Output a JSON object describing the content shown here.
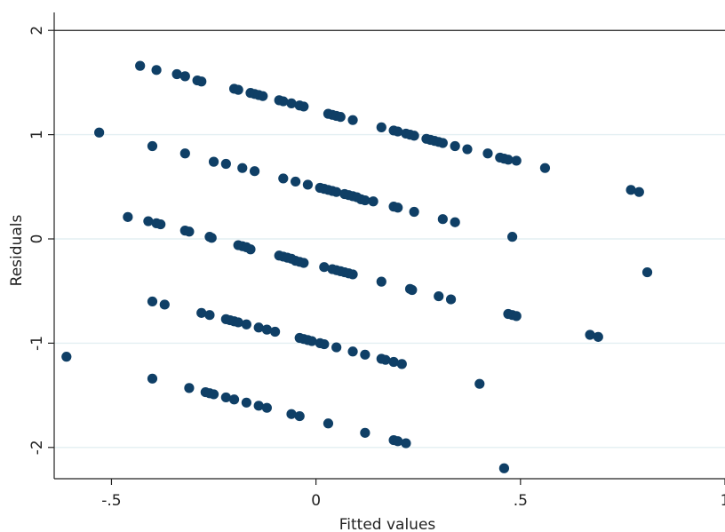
{
  "chart_data": {
    "type": "scatter",
    "xlabel": "Fitted values",
    "ylabel": "Residuals",
    "xlim": [
      -0.64,
      1.0
    ],
    "ylim": [
      -2.3,
      2.07
    ],
    "xticks": [
      {
        "value": -0.5,
        "label": "-.5"
      },
      {
        "value": 0,
        "label": "0"
      },
      {
        "value": 0.5,
        "label": ".5"
      },
      {
        "value": 1,
        "label": "1"
      }
    ],
    "yticks": [
      {
        "value": -2,
        "label": "-2"
      },
      {
        "value": -1,
        "label": "-1"
      },
      {
        "value": 0,
        "label": "0"
      },
      {
        "value": 1,
        "label": "1"
      },
      {
        "value": 2,
        "label": "2"
      }
    ],
    "grid": "horizontal",
    "marker_color": "#0f3f66",
    "gridline_color": "#e3eff2",
    "points": [
      {
        "x": -0.43,
        "y": 1.66
      },
      {
        "x": -0.39,
        "y": 1.62
      },
      {
        "x": -0.34,
        "y": 1.58
      },
      {
        "x": -0.32,
        "y": 1.56
      },
      {
        "x": -0.29,
        "y": 1.52
      },
      {
        "x": -0.28,
        "y": 1.51
      },
      {
        "x": -0.2,
        "y": 1.44
      },
      {
        "x": -0.19,
        "y": 1.43
      },
      {
        "x": -0.16,
        "y": 1.4
      },
      {
        "x": -0.15,
        "y": 1.39
      },
      {
        "x": -0.14,
        "y": 1.38
      },
      {
        "x": -0.13,
        "y": 1.37
      },
      {
        "x": -0.09,
        "y": 1.33
      },
      {
        "x": -0.08,
        "y": 1.32
      },
      {
        "x": -0.06,
        "y": 1.3
      },
      {
        "x": -0.04,
        "y": 1.28
      },
      {
        "x": -0.03,
        "y": 1.27
      },
      {
        "x": 0.03,
        "y": 1.2
      },
      {
        "x": 0.04,
        "y": 1.19
      },
      {
        "x": 0.05,
        "y": 1.18
      },
      {
        "x": 0.06,
        "y": 1.17
      },
      {
        "x": 0.09,
        "y": 1.14
      },
      {
        "x": 0.16,
        "y": 1.07
      },
      {
        "x": 0.19,
        "y": 1.04
      },
      {
        "x": 0.2,
        "y": 1.03
      },
      {
        "x": 0.22,
        "y": 1.01
      },
      {
        "x": 0.23,
        "y": 1.0
      },
      {
        "x": 0.24,
        "y": 0.99
      },
      {
        "x": 0.27,
        "y": 0.96
      },
      {
        "x": 0.28,
        "y": 0.95
      },
      {
        "x": 0.29,
        "y": 0.94
      },
      {
        "x": 0.3,
        "y": 0.93
      },
      {
        "x": 0.31,
        "y": 0.92
      },
      {
        "x": 0.34,
        "y": 0.89
      },
      {
        "x": 0.37,
        "y": 0.86
      },
      {
        "x": 0.42,
        "y": 0.82
      },
      {
        "x": 0.45,
        "y": 0.78
      },
      {
        "x": 0.46,
        "y": 0.77
      },
      {
        "x": 0.47,
        "y": 0.76
      },
      {
        "x": 0.49,
        "y": 0.75
      },
      {
        "x": 0.56,
        "y": 0.68
      },
      {
        "x": -0.53,
        "y": 1.02
      },
      {
        "x": -0.4,
        "y": 0.89
      },
      {
        "x": -0.32,
        "y": 0.82
      },
      {
        "x": -0.25,
        "y": 0.74
      },
      {
        "x": -0.22,
        "y": 0.72
      },
      {
        "x": -0.18,
        "y": 0.68
      },
      {
        "x": -0.15,
        "y": 0.65
      },
      {
        "x": -0.08,
        "y": 0.58
      },
      {
        "x": -0.05,
        "y": 0.55
      },
      {
        "x": -0.02,
        "y": 0.52
      },
      {
        "x": 0.01,
        "y": 0.49
      },
      {
        "x": 0.02,
        "y": 0.48
      },
      {
        "x": 0.03,
        "y": 0.47
      },
      {
        "x": 0.04,
        "y": 0.46
      },
      {
        "x": 0.05,
        "y": 0.45
      },
      {
        "x": 0.07,
        "y": 0.43
      },
      {
        "x": 0.08,
        "y": 0.42
      },
      {
        "x": 0.09,
        "y": 0.41
      },
      {
        "x": 0.1,
        "y": 0.4
      },
      {
        "x": 0.11,
        "y": 0.38
      },
      {
        "x": 0.12,
        "y": 0.37
      },
      {
        "x": 0.14,
        "y": 0.36
      },
      {
        "x": 0.19,
        "y": 0.31
      },
      {
        "x": 0.2,
        "y": 0.3
      },
      {
        "x": 0.24,
        "y": 0.26
      },
      {
        "x": 0.31,
        "y": 0.19
      },
      {
        "x": 0.34,
        "y": 0.16
      },
      {
        "x": 0.77,
        "y": 0.47
      },
      {
        "x": 0.79,
        "y": 0.45
      },
      {
        "x": -0.46,
        "y": 0.21
      },
      {
        "x": -0.41,
        "y": 0.17
      },
      {
        "x": -0.39,
        "y": 0.15
      },
      {
        "x": -0.38,
        "y": 0.14
      },
      {
        "x": -0.32,
        "y": 0.08
      },
      {
        "x": -0.31,
        "y": 0.07
      },
      {
        "x": -0.26,
        "y": 0.02
      },
      {
        "x": -0.255,
        "y": 0.01
      },
      {
        "x": -0.19,
        "y": -0.06
      },
      {
        "x": -0.18,
        "y": -0.07
      },
      {
        "x": -0.17,
        "y": -0.08
      },
      {
        "x": -0.16,
        "y": -0.1
      },
      {
        "x": -0.09,
        "y": -0.16
      },
      {
        "x": -0.08,
        "y": -0.17
      },
      {
        "x": -0.07,
        "y": -0.18
      },
      {
        "x": -0.06,
        "y": -0.19
      },
      {
        "x": -0.05,
        "y": -0.21
      },
      {
        "x": -0.04,
        "y": -0.22
      },
      {
        "x": -0.03,
        "y": -0.23
      },
      {
        "x": 0.02,
        "y": -0.27
      },
      {
        "x": 0.04,
        "y": -0.29
      },
      {
        "x": 0.05,
        "y": -0.3
      },
      {
        "x": 0.06,
        "y": -0.31
      },
      {
        "x": 0.07,
        "y": -0.32
      },
      {
        "x": 0.08,
        "y": -0.33
      },
      {
        "x": 0.09,
        "y": -0.34
      },
      {
        "x": 0.16,
        "y": -0.41
      },
      {
        "x": 0.23,
        "y": -0.48
      },
      {
        "x": 0.235,
        "y": -0.49
      },
      {
        "x": 0.3,
        "y": -0.55
      },
      {
        "x": 0.33,
        "y": -0.58
      },
      {
        "x": 0.48,
        "y": 0.02
      },
      {
        "x": 0.81,
        "y": -0.32
      },
      {
        "x": -0.4,
        "y": -0.6
      },
      {
        "x": -0.37,
        "y": -0.63
      },
      {
        "x": -0.28,
        "y": -0.71
      },
      {
        "x": -0.26,
        "y": -0.73
      },
      {
        "x": -0.22,
        "y": -0.77
      },
      {
        "x": -0.21,
        "y": -0.78
      },
      {
        "x": -0.2,
        "y": -0.79
      },
      {
        "x": -0.19,
        "y": -0.8
      },
      {
        "x": -0.17,
        "y": -0.82
      },
      {
        "x": -0.14,
        "y": -0.85
      },
      {
        "x": -0.12,
        "y": -0.87
      },
      {
        "x": -0.1,
        "y": -0.89
      },
      {
        "x": -0.04,
        "y": -0.95
      },
      {
        "x": -0.03,
        "y": -0.96
      },
      {
        "x": -0.02,
        "y": -0.97
      },
      {
        "x": -0.01,
        "y": -0.98
      },
      {
        "x": 0.01,
        "y": -1.0
      },
      {
        "x": 0.02,
        "y": -1.01
      },
      {
        "x": 0.05,
        "y": -1.04
      },
      {
        "x": 0.09,
        "y": -1.08
      },
      {
        "x": 0.12,
        "y": -1.11
      },
      {
        "x": 0.16,
        "y": -1.15
      },
      {
        "x": 0.17,
        "y": -1.16
      },
      {
        "x": 0.19,
        "y": -1.18
      },
      {
        "x": 0.21,
        "y": -1.2
      },
      {
        "x": 0.47,
        "y": -0.72
      },
      {
        "x": 0.48,
        "y": -0.73
      },
      {
        "x": 0.49,
        "y": -0.74
      },
      {
        "x": 0.67,
        "y": -0.92
      },
      {
        "x": 0.69,
        "y": -0.94
      },
      {
        "x": -0.61,
        "y": -1.13
      },
      {
        "x": -0.4,
        "y": -1.34
      },
      {
        "x": -0.31,
        "y": -1.43
      },
      {
        "x": -0.27,
        "y": -1.47
      },
      {
        "x": -0.26,
        "y": -1.48
      },
      {
        "x": -0.25,
        "y": -1.49
      },
      {
        "x": -0.22,
        "y": -1.52
      },
      {
        "x": -0.2,
        "y": -1.54
      },
      {
        "x": -0.17,
        "y": -1.57
      },
      {
        "x": -0.14,
        "y": -1.6
      },
      {
        "x": -0.12,
        "y": -1.62
      },
      {
        "x": -0.06,
        "y": -1.68
      },
      {
        "x": -0.04,
        "y": -1.7
      },
      {
        "x": 0.03,
        "y": -1.77
      },
      {
        "x": 0.12,
        "y": -1.86
      },
      {
        "x": 0.19,
        "y": -1.93
      },
      {
        "x": 0.2,
        "y": -1.94
      },
      {
        "x": 0.22,
        "y": -1.96
      },
      {
        "x": 0.4,
        "y": -1.39
      },
      {
        "x": 0.46,
        "y": -2.2
      }
    ]
  }
}
